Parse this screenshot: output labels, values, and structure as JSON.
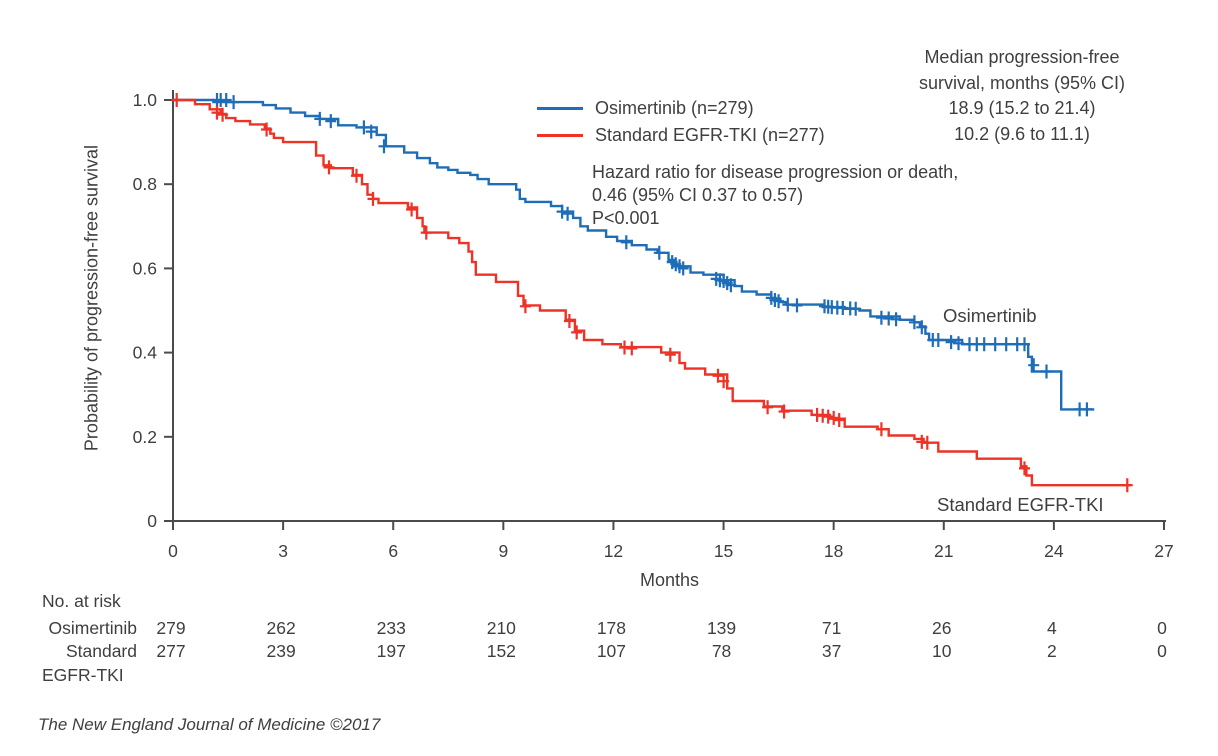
{
  "footer": "The New England Journal of Medicine ©2017",
  "colors": {
    "osimertinib": "#1e6db8",
    "standard_egfr_tki": "#ee3226",
    "axis": "#4b4b4b",
    "text": "#3f3f3f"
  },
  "chart_data": {
    "type": "line",
    "chart_kind": "kaplan-meier-step",
    "title": "",
    "xlabel": "Months",
    "ylabel": "Probability of progression-free survival",
    "xlim": [
      0,
      27
    ],
    "ylim": [
      0,
      1.0
    ],
    "grid": false,
    "xticks": [
      0,
      3,
      6,
      9,
      12,
      15,
      18,
      21,
      24,
      27
    ],
    "yticks": [
      {
        "label": "1.0",
        "value": 1.0
      },
      {
        "label": "0.8",
        "value": 0.8
      },
      {
        "label": "0.6",
        "value": 0.6
      },
      {
        "label": "0.4",
        "value": 0.4
      },
      {
        "label": "0.2",
        "value": 0.2
      },
      {
        "label": "0",
        "value": 0
      }
    ],
    "legend_position": "inside-top-center",
    "legend": [
      {
        "label": "Osimertinib (n=279)",
        "color": "#1e6db8"
      },
      {
        "label": "Standard EGFR-TKI (n=277)",
        "color": "#ee3226"
      }
    ],
    "annotations": {
      "median_title_line1": "Median progression-free",
      "median_title_line2": "survival, months (95% CI)",
      "median_osimertinib": "18.9 (15.2 to 21.4)",
      "median_standard": "10.2 (9.6 to 11.1)",
      "hazard_line1": "Hazard ratio for disease progression or death,",
      "hazard_line2": "0.46 (95% CI 0.37 to 0.57)",
      "hazard_line3": "P<0.001",
      "curve_label_osimertinib": "Osimertinib",
      "curve_label_standard": "Standard EGFR-TKI"
    },
    "series": [
      {
        "name": "Osimertinib",
        "color": "#1e6db8",
        "end_month": 25.1,
        "steps": [
          [
            0,
            1.0
          ],
          [
            1.1,
            0.995
          ],
          [
            2.45,
            0.988
          ],
          [
            2.8,
            0.98
          ],
          [
            3.2,
            0.97
          ],
          [
            3.6,
            0.962
          ],
          [
            4.0,
            0.955
          ],
          [
            4.5,
            0.94
          ],
          [
            5.0,
            0.935
          ],
          [
            5.55,
            0.917
          ],
          [
            5.8,
            0.89
          ],
          [
            6.3,
            0.875
          ],
          [
            6.65,
            0.862
          ],
          [
            7.0,
            0.85
          ],
          [
            7.2,
            0.84
          ],
          [
            7.5,
            0.834
          ],
          [
            7.75,
            0.827
          ],
          [
            8.1,
            0.822
          ],
          [
            8.3,
            0.812
          ],
          [
            8.6,
            0.8
          ],
          [
            9.35,
            0.787
          ],
          [
            9.45,
            0.765
          ],
          [
            9.6,
            0.758
          ],
          [
            10.3,
            0.748
          ],
          [
            10.6,
            0.735
          ],
          [
            10.9,
            0.72
          ],
          [
            11.1,
            0.7
          ],
          [
            11.3,
            0.69
          ],
          [
            11.8,
            0.675
          ],
          [
            12.1,
            0.665
          ],
          [
            12.5,
            0.655
          ],
          [
            12.9,
            0.645
          ],
          [
            13.2,
            0.637
          ],
          [
            13.5,
            0.62
          ],
          [
            13.65,
            0.605
          ],
          [
            14.1,
            0.59
          ],
          [
            14.45,
            0.585
          ],
          [
            15.0,
            0.572
          ],
          [
            15.3,
            0.558
          ],
          [
            15.5,
            0.545
          ],
          [
            15.9,
            0.538
          ],
          [
            16.3,
            0.528
          ],
          [
            16.55,
            0.52
          ],
          [
            16.7,
            0.514
          ],
          [
            17.7,
            0.508
          ],
          [
            18.3,
            0.504
          ],
          [
            18.7,
            0.5
          ],
          [
            19.0,
            0.486
          ],
          [
            19.8,
            0.478
          ],
          [
            20.2,
            0.472
          ],
          [
            20.35,
            0.462
          ],
          [
            20.5,
            0.445
          ],
          [
            20.6,
            0.43
          ],
          [
            21.5,
            0.42
          ],
          [
            23.3,
            0.39
          ],
          [
            23.4,
            0.355
          ],
          [
            24.2,
            0.265
          ]
        ],
        "censors": [
          [
            1.2,
            1.0
          ],
          [
            1.3,
            1.0
          ],
          [
            1.45,
            1.0
          ],
          [
            1.65,
            0.995
          ],
          [
            4.0,
            0.955
          ],
          [
            4.3,
            0.95
          ],
          [
            5.2,
            0.935
          ],
          [
            5.4,
            0.925
          ],
          [
            5.75,
            0.89
          ],
          [
            10.6,
            0.735
          ],
          [
            10.75,
            0.73
          ],
          [
            12.35,
            0.662
          ],
          [
            13.25,
            0.637
          ],
          [
            13.6,
            0.615
          ],
          [
            13.7,
            0.61
          ],
          [
            13.8,
            0.605
          ],
          [
            13.9,
            0.6
          ],
          [
            14.8,
            0.575
          ],
          [
            14.9,
            0.572
          ],
          [
            15.0,
            0.57
          ],
          [
            15.1,
            0.565
          ],
          [
            15.2,
            0.56
          ],
          [
            16.3,
            0.53
          ],
          [
            16.4,
            0.525
          ],
          [
            16.5,
            0.522
          ],
          [
            16.75,
            0.514
          ],
          [
            17.0,
            0.512
          ],
          [
            17.75,
            0.51
          ],
          [
            17.85,
            0.509
          ],
          [
            17.95,
            0.508
          ],
          [
            18.1,
            0.507
          ],
          [
            18.25,
            0.506
          ],
          [
            18.45,
            0.505
          ],
          [
            18.6,
            0.504
          ],
          [
            19.3,
            0.483
          ],
          [
            19.5,
            0.481
          ],
          [
            19.7,
            0.479
          ],
          [
            20.2,
            0.472
          ],
          [
            20.4,
            0.46
          ],
          [
            20.7,
            0.43
          ],
          [
            20.85,
            0.43
          ],
          [
            21.2,
            0.425
          ],
          [
            21.4,
            0.422
          ],
          [
            21.7,
            0.42
          ],
          [
            21.9,
            0.42
          ],
          [
            22.1,
            0.42
          ],
          [
            22.4,
            0.42
          ],
          [
            22.7,
            0.42
          ],
          [
            23.0,
            0.42
          ],
          [
            23.2,
            0.42
          ],
          [
            23.45,
            0.37
          ],
          [
            23.8,
            0.355
          ],
          [
            24.7,
            0.265
          ],
          [
            24.9,
            0.265
          ]
        ]
      },
      {
        "name": "Standard EGFR-TKI",
        "color": "#ee3226",
        "end_month": 26.1,
        "steps": [
          [
            0,
            1.0
          ],
          [
            0.6,
            0.99
          ],
          [
            1.0,
            0.978
          ],
          [
            1.3,
            0.967
          ],
          [
            1.45,
            0.957
          ],
          [
            1.7,
            0.95
          ],
          [
            2.1,
            0.942
          ],
          [
            2.5,
            0.932
          ],
          [
            2.65,
            0.92
          ],
          [
            2.75,
            0.91
          ],
          [
            3.0,
            0.9
          ],
          [
            3.9,
            0.868
          ],
          [
            4.1,
            0.845
          ],
          [
            4.3,
            0.838
          ],
          [
            4.9,
            0.822
          ],
          [
            5.15,
            0.8
          ],
          [
            5.3,
            0.775
          ],
          [
            5.45,
            0.765
          ],
          [
            5.6,
            0.755
          ],
          [
            6.4,
            0.745
          ],
          [
            6.65,
            0.72
          ],
          [
            6.8,
            0.7
          ],
          [
            6.85,
            0.685
          ],
          [
            7.5,
            0.672
          ],
          [
            7.8,
            0.66
          ],
          [
            8.05,
            0.64
          ],
          [
            8.15,
            0.615
          ],
          [
            8.25,
            0.585
          ],
          [
            8.8,
            0.568
          ],
          [
            9.4,
            0.535
          ],
          [
            9.55,
            0.512
          ],
          [
            10.0,
            0.5
          ],
          [
            10.7,
            0.478
          ],
          [
            10.95,
            0.452
          ],
          [
            11.2,
            0.43
          ],
          [
            11.7,
            0.42
          ],
          [
            12.2,
            0.413
          ],
          [
            13.3,
            0.4
          ],
          [
            13.8,
            0.375
          ],
          [
            13.95,
            0.362
          ],
          [
            14.5,
            0.348
          ],
          [
            15.1,
            0.315
          ],
          [
            15.25,
            0.285
          ],
          [
            16.1,
            0.272
          ],
          [
            16.6,
            0.262
          ],
          [
            17.4,
            0.252
          ],
          [
            17.9,
            0.243
          ],
          [
            18.3,
            0.224
          ],
          [
            19.2,
            0.218
          ],
          [
            19.5,
            0.203
          ],
          [
            20.2,
            0.195
          ],
          [
            20.45,
            0.186
          ],
          [
            20.85,
            0.165
          ],
          [
            21.9,
            0.148
          ],
          [
            23.1,
            0.13
          ],
          [
            23.25,
            0.108
          ],
          [
            23.4,
            0.085
          ]
        ],
        "censors": [
          [
            0.1,
            1.0
          ],
          [
            1.2,
            0.97
          ],
          [
            1.35,
            0.965
          ],
          [
            2.55,
            0.93
          ],
          [
            4.25,
            0.84
          ],
          [
            5.0,
            0.82
          ],
          [
            5.45,
            0.765
          ],
          [
            6.5,
            0.74
          ],
          [
            6.9,
            0.685
          ],
          [
            9.6,
            0.51
          ],
          [
            10.8,
            0.475
          ],
          [
            11.0,
            0.448
          ],
          [
            12.3,
            0.412
          ],
          [
            12.5,
            0.41
          ],
          [
            13.55,
            0.395
          ],
          [
            14.85,
            0.345
          ],
          [
            15.0,
            0.332
          ],
          [
            16.2,
            0.27
          ],
          [
            16.65,
            0.26
          ],
          [
            17.55,
            0.252
          ],
          [
            17.7,
            0.25
          ],
          [
            17.85,
            0.248
          ],
          [
            18.0,
            0.245
          ],
          [
            18.15,
            0.24
          ],
          [
            19.3,
            0.218
          ],
          [
            20.4,
            0.188
          ],
          [
            20.55,
            0.186
          ],
          [
            23.2,
            0.125
          ],
          [
            26.0,
            0.085
          ]
        ]
      }
    ],
    "risk_table": {
      "title": "No. at risk",
      "months": [
        0,
        3,
        6,
        9,
        12,
        15,
        18,
        21,
        24,
        27
      ],
      "rows": [
        {
          "label": "Osimertinib",
          "label_line1": "Osimertinib",
          "label_line2": "",
          "values": [
            279,
            262,
            233,
            210,
            178,
            139,
            71,
            26,
            4,
            0
          ]
        },
        {
          "label": "Standard EGFR-TKI",
          "label_line1": "Standard",
          "label_line2": "EGFR-TKI",
          "values": [
            277,
            239,
            197,
            152,
            107,
            78,
            37,
            10,
            2,
            0
          ]
        }
      ]
    }
  }
}
